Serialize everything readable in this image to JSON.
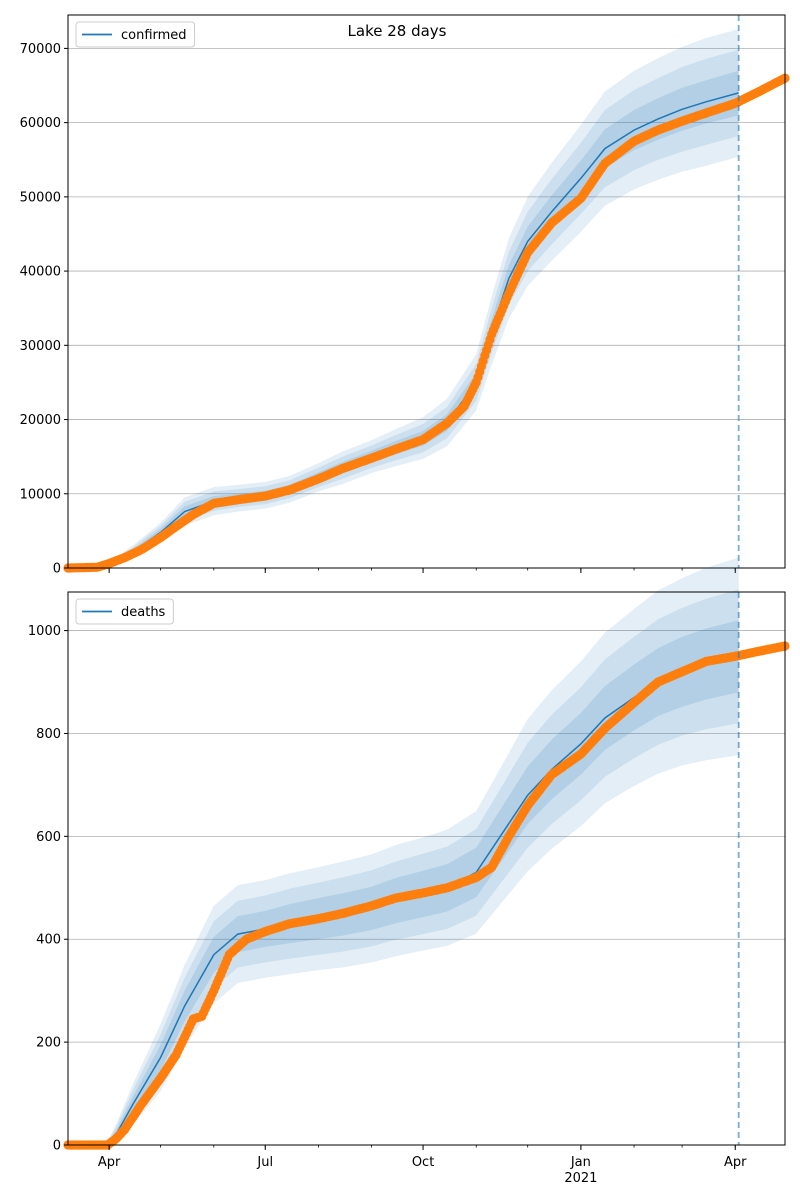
{
  "figure": {
    "suptitle": "Lake 28 days"
  },
  "chart_data": [
    {
      "type": "line",
      "legend": "confirmed",
      "legend_placement": "top-left",
      "grid": "horizontal",
      "ylim": [
        0,
        74500
      ],
      "yticks": [
        0,
        10000,
        20000,
        30000,
        40000,
        50000,
        60000,
        70000
      ],
      "xlim": [
        "2020-03-08",
        "2021-04-30"
      ],
      "xticks": [
        {
          "date": "2020-04-01",
          "label": "Apr"
        },
        {
          "date": "2020-07-01",
          "label": "Jul"
        },
        {
          "date": "2020-10-01",
          "label": "Oct"
        },
        {
          "date": "2021-01-01",
          "label": "Jan",
          "sublabel": "2021"
        },
        {
          "date": "2021-04-01",
          "label": "Apr"
        }
      ],
      "forecast_start": "2021-04-03",
      "model": {
        "x": [
          "2020-03-08",
          "2020-03-20",
          "2020-04-01",
          "2020-04-15",
          "2020-05-01",
          "2020-05-15",
          "2020-06-01",
          "2020-06-15",
          "2020-07-01",
          "2020-07-15",
          "2020-08-01",
          "2020-08-15",
          "2020-09-01",
          "2020-09-15",
          "2020-10-01",
          "2020-10-15",
          "2020-11-01",
          "2020-11-10",
          "2020-11-20",
          "2020-12-01",
          "2020-12-15",
          "2021-01-01",
          "2021-01-15",
          "2021-02-01",
          "2021-02-15",
          "2021-03-01",
          "2021-03-15",
          "2021-04-03"
        ],
        "y": [
          0,
          0,
          500,
          2200,
          4800,
          7600,
          9000,
          9400,
          9800,
          10600,
          12200,
          13500,
          15000,
          16200,
          17500,
          19600,
          25000,
          32000,
          39000,
          44000,
          48000,
          52500,
          56500,
          59000,
          60500,
          61800,
          62800,
          64000
        ],
        "band_50": [
          [
            0,
            0
          ],
          [
            0,
            0
          ],
          [
            400,
            600
          ],
          [
            1900,
            2500
          ],
          [
            4300,
            5300
          ],
          [
            6900,
            8300
          ],
          [
            8300,
            9700
          ],
          [
            8800,
            10000
          ],
          [
            9200,
            10400
          ],
          [
            10000,
            11200
          ],
          [
            11500,
            12900
          ],
          [
            12700,
            14300
          ],
          [
            14200,
            15800
          ],
          [
            15300,
            17100
          ],
          [
            16500,
            18500
          ],
          [
            18500,
            20700
          ],
          [
            23700,
            26300
          ],
          [
            30500,
            33500
          ],
          [
            37200,
            40800
          ],
          [
            42000,
            46000
          ],
          [
            45800,
            50200
          ],
          [
            50100,
            54900
          ],
          [
            53900,
            59100
          ],
          [
            56300,
            61700
          ],
          [
            57700,
            63300
          ],
          [
            58900,
            64700
          ],
          [
            59900,
            65700
          ],
          [
            61000,
            67000
          ]
        ],
        "band_80": [
          [
            0,
            0
          ],
          [
            0,
            0
          ],
          [
            300,
            700
          ],
          [
            1600,
            2800
          ],
          [
            3900,
            5700
          ],
          [
            6300,
            8900
          ],
          [
            7700,
            10300
          ],
          [
            8200,
            10600
          ],
          [
            8600,
            11000
          ],
          [
            9400,
            11800
          ],
          [
            10900,
            13500
          ],
          [
            12000,
            15000
          ],
          [
            13500,
            16500
          ],
          [
            14500,
            17900
          ],
          [
            15600,
            19400
          ],
          [
            17500,
            21700
          ],
          [
            22500,
            27500
          ],
          [
            29000,
            35000
          ],
          [
            35400,
            42600
          ],
          [
            40000,
            48000
          ],
          [
            43600,
            52400
          ],
          [
            47700,
            57300
          ],
          [
            51300,
            61700
          ],
          [
            53600,
            64400
          ],
          [
            55000,
            66000
          ],
          [
            56100,
            67500
          ],
          [
            57000,
            68600
          ],
          [
            58200,
            69800
          ]
        ],
        "band_95": [
          [
            0,
            0
          ],
          [
            0,
            0
          ],
          [
            200,
            800
          ],
          [
            1300,
            3100
          ],
          [
            3500,
            6100
          ],
          [
            5700,
            9500
          ],
          [
            7100,
            10900
          ],
          [
            7600,
            11200
          ],
          [
            8000,
            11600
          ],
          [
            8800,
            12400
          ],
          [
            10300,
            14100
          ],
          [
            11300,
            15700
          ],
          [
            12800,
            17200
          ],
          [
            13700,
            18700
          ],
          [
            14700,
            20300
          ],
          [
            16400,
            22800
          ],
          [
            21200,
            28800
          ],
          [
            27400,
            36600
          ],
          [
            33600,
            44400
          ],
          [
            38000,
            50000
          ],
          [
            41400,
            54600
          ],
          [
            45300,
            59700
          ],
          [
            48800,
            64200
          ],
          [
            51000,
            67000
          ],
          [
            52300,
            68700
          ],
          [
            53400,
            70200
          ],
          [
            54200,
            71400
          ],
          [
            55400,
            72600
          ]
        ]
      },
      "observed": {
        "x": [
          "2020-03-08",
          "2020-03-25",
          "2020-04-01",
          "2020-04-10",
          "2020-04-20",
          "2020-05-01",
          "2020-05-10",
          "2020-05-20",
          "2020-06-01",
          "2020-06-15",
          "2020-07-01",
          "2020-07-15",
          "2020-08-01",
          "2020-08-15",
          "2020-09-01",
          "2020-09-15",
          "2020-10-01",
          "2020-10-15",
          "2020-10-25",
          "2020-11-01",
          "2020-11-10",
          "2020-11-20",
          "2020-12-01",
          "2020-12-15",
          "2021-01-01",
          "2021-01-15",
          "2021-02-01",
          "2021-02-15",
          "2021-03-01",
          "2021-03-15",
          "2021-04-01",
          "2021-04-15",
          "2021-04-30"
        ],
        "y": [
          0,
          100,
          600,
          1400,
          2500,
          4100,
          5600,
          7200,
          8700,
          9200,
          9700,
          10500,
          12000,
          13400,
          14800,
          16000,
          17300,
          19500,
          21800,
          25000,
          31500,
          37000,
          42500,
          46500,
          49800,
          54500,
          57500,
          59000,
          60200,
          61300,
          62600,
          64200,
          66000
        ]
      }
    },
    {
      "type": "line",
      "legend": "deaths",
      "legend_placement": "top-left",
      "grid": "horizontal",
      "ylim": [
        0,
        1075
      ],
      "yticks": [
        0,
        200,
        400,
        600,
        800,
        1000
      ],
      "xlim": [
        "2020-03-08",
        "2021-04-30"
      ],
      "xticks": [
        {
          "date": "2020-04-01",
          "label": "Apr"
        },
        {
          "date": "2020-07-01",
          "label": "Jul"
        },
        {
          "date": "2020-10-01",
          "label": "Oct"
        },
        {
          "date": "2021-01-01",
          "label": "Jan",
          "sublabel": "2021"
        },
        {
          "date": "2021-04-01",
          "label": "Apr"
        }
      ],
      "forecast_start": "2021-04-03",
      "model": {
        "x": [
          "2020-03-08",
          "2020-03-30",
          "2020-04-05",
          "2020-04-15",
          "2020-05-01",
          "2020-05-15",
          "2020-06-01",
          "2020-06-15",
          "2020-07-01",
          "2020-07-15",
          "2020-08-01",
          "2020-08-15",
          "2020-09-01",
          "2020-09-15",
          "2020-10-01",
          "2020-10-15",
          "2020-11-01",
          "2020-11-15",
          "2020-12-01",
          "2020-12-15",
          "2021-01-01",
          "2021-01-15",
          "2021-02-01",
          "2021-02-15",
          "2021-03-01",
          "2021-03-15",
          "2021-04-03"
        ],
        "y": [
          0,
          0,
          20,
          80,
          170,
          270,
          370,
          410,
          420,
          430,
          440,
          448,
          460,
          475,
          488,
          500,
          530,
          600,
          680,
          730,
          780,
          830,
          870,
          900,
          920,
          935,
          950
        ],
        "band_50": [
          [
            0,
            0
          ],
          [
            0,
            0
          ],
          [
            12,
            28
          ],
          [
            65,
            95
          ],
          [
            145,
            195
          ],
          [
            240,
            300
          ],
          [
            335,
            405
          ],
          [
            375,
            445
          ],
          [
            385,
            455
          ],
          [
            392,
            468
          ],
          [
            400,
            480
          ],
          [
            407,
            489
          ],
          [
            418,
            502
          ],
          [
            431,
            519
          ],
          [
            443,
            533
          ],
          [
            454,
            546
          ],
          [
            482,
            578
          ],
          [
            548,
            652
          ],
          [
            624,
            736
          ],
          [
            672,
            788
          ],
          [
            720,
            840
          ],
          [
            768,
            892
          ],
          [
            806,
            934
          ],
          [
            834,
            966
          ],
          [
            852,
            988
          ],
          [
            866,
            1004
          ],
          [
            880,
            1020
          ]
        ],
        "band_80": [
          [
            0,
            0
          ],
          [
            0,
            0
          ],
          [
            6,
            34
          ],
          [
            52,
            108
          ],
          [
            125,
            215
          ],
          [
            215,
            325
          ],
          [
            305,
            435
          ],
          [
            345,
            475
          ],
          [
            355,
            485
          ],
          [
            362,
            498
          ],
          [
            370,
            510
          ],
          [
            376,
            520
          ],
          [
            386,
            534
          ],
          [
            399,
            551
          ],
          [
            410,
            566
          ],
          [
            420,
            580
          ],
          [
            446,
            614
          ],
          [
            508,
            692
          ],
          [
            578,
            782
          ],
          [
            624,
            836
          ],
          [
            670,
            890
          ],
          [
            716,
            944
          ],
          [
            752,
            988
          ],
          [
            778,
            1022
          ],
          [
            796,
            1044
          ],
          [
            808,
            1062
          ],
          [
            820,
            1080
          ]
        ],
        "band_95": [
          [
            0,
            0
          ],
          [
            0,
            0
          ],
          [
            0,
            40
          ],
          [
            40,
            120
          ],
          [
            105,
            235
          ],
          [
            190,
            350
          ],
          [
            275,
            465
          ],
          [
            315,
            505
          ],
          [
            325,
            515
          ],
          [
            332,
            528
          ],
          [
            340,
            540
          ],
          [
            345,
            551
          ],
          [
            355,
            565
          ],
          [
            367,
            583
          ],
          [
            378,
            598
          ],
          [
            387,
            613
          ],
          [
            411,
            649
          ],
          [
            468,
            732
          ],
          [
            532,
            828
          ],
          [
            576,
            884
          ],
          [
            620,
            940
          ],
          [
            664,
            996
          ],
          [
            698,
            1042
          ],
          [
            722,
            1078
          ],
          [
            738,
            1102
          ],
          [
            748,
            1122
          ],
          [
            758,
            1142
          ]
        ]
      },
      "observed": {
        "x": [
          "2020-03-08",
          "2020-03-31",
          "2020-04-05",
          "2020-04-10",
          "2020-04-20",
          "2020-05-01",
          "2020-05-10",
          "2020-05-20",
          "2020-05-25",
          "2020-06-01",
          "2020-06-10",
          "2020-06-20",
          "2020-07-01",
          "2020-07-15",
          "2020-08-01",
          "2020-08-15",
          "2020-09-01",
          "2020-09-15",
          "2020-10-01",
          "2020-10-15",
          "2020-11-01",
          "2020-11-10",
          "2020-11-20",
          "2020-12-01",
          "2020-12-15",
          "2021-01-01",
          "2021-01-15",
          "2021-02-01",
          "2021-02-15",
          "2021-03-01",
          "2021-03-15",
          "2021-04-01",
          "2021-04-15",
          "2021-04-30"
        ],
        "y": [
          0,
          0,
          12,
          30,
          80,
          130,
          175,
          245,
          250,
          300,
          370,
          400,
          415,
          430,
          440,
          450,
          465,
          480,
          490,
          500,
          520,
          540,
          600,
          660,
          720,
          760,
          810,
          860,
          900,
          920,
          940,
          950,
          960,
          970
        ]
      }
    }
  ]
}
